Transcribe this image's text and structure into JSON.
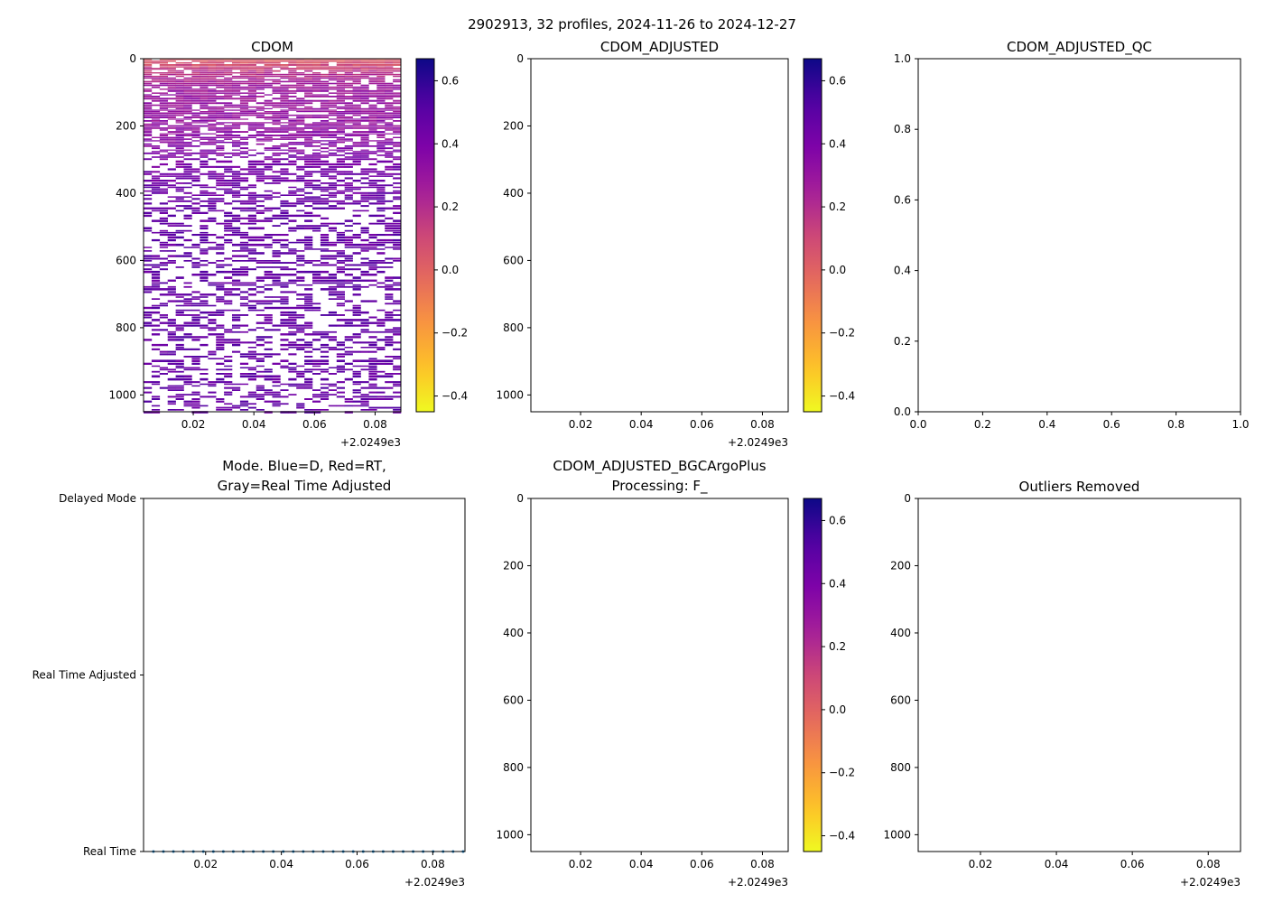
{
  "suptitle": "2902913, 32 profiles, 2024-11-26 to 2024-12-27",
  "colors": {
    "dots": "#1f77b4",
    "frame": "#000000"
  },
  "chart_data": [
    {
      "id": "cdom",
      "type": "heatmap",
      "title": "CDOM",
      "xlim": [
        0.0036,
        0.0885
      ],
      "xticks": [
        "0.02",
        "0.04",
        "0.06",
        "0.08"
      ],
      "xtick_values": [
        0.02,
        0.04,
        0.06,
        0.08
      ],
      "x_offset_label": "+2.0249e3",
      "ylim": [
        1050,
        0
      ],
      "yticks": [
        "0",
        "200",
        "400",
        "600",
        "800",
        "1000"
      ],
      "ytick_values": [
        0,
        200,
        400,
        600,
        800,
        1000
      ],
      "n_profiles": 32,
      "depth_profile": {
        "depth": [
          0,
          30,
          80,
          200,
          320,
          450,
          700,
          1050
        ],
        "mean_value": [
          0.02,
          0.15,
          0.28,
          0.32,
          0.42,
          0.47,
          0.48,
          0.47
        ],
        "missing_fraction": [
          0.1,
          0.15,
          0.2,
          0.25,
          0.45,
          0.5,
          0.55,
          0.6
        ]
      },
      "colorbar": {
        "cmap": "plasma_r",
        "range": [
          -0.45,
          0.67
        ],
        "ticks": [
          "−0.4",
          "−0.2",
          "0.0",
          "0.2",
          "0.4",
          "0.6"
        ],
        "tick_values": [
          -0.4,
          -0.2,
          0,
          0.2,
          0.4,
          0.6
        ]
      }
    },
    {
      "id": "cdom_adj",
      "type": "heatmap",
      "title": "CDOM_ADJUSTED",
      "xlim": [
        0.0036,
        0.0885
      ],
      "xticks": [
        "0.02",
        "0.04",
        "0.06",
        "0.08"
      ],
      "xtick_values": [
        0.02,
        0.04,
        0.06,
        0.08
      ],
      "x_offset_label": "+2.0249e3",
      "ylim": [
        1050,
        0
      ],
      "yticks": [
        "0",
        "200",
        "400",
        "600",
        "800",
        "1000"
      ],
      "ytick_values": [
        0,
        200,
        400,
        600,
        800,
        1000
      ],
      "colorbar": {
        "cmap": "plasma_r",
        "range": [
          -0.45,
          0.67
        ],
        "ticks": [
          "−0.4",
          "−0.2",
          "0.0",
          "0.2",
          "0.4",
          "0.6"
        ],
        "tick_values": [
          -0.4,
          -0.2,
          0,
          0.2,
          0.4,
          0.6
        ]
      }
    },
    {
      "id": "cdom_adj_qc",
      "type": "scatter",
      "title": "CDOM_ADJUSTED_QC",
      "xlim": [
        0,
        1
      ],
      "xticks": [
        "0.0",
        "0.2",
        "0.4",
        "0.6",
        "0.8",
        "1.0"
      ],
      "xtick_values": [
        0,
        0.2,
        0.4,
        0.6,
        0.8,
        1.0
      ],
      "ylim": [
        0,
        1
      ],
      "yticks": [
        "0.0",
        "0.2",
        "0.4",
        "0.6",
        "0.8",
        "1.0"
      ],
      "ytick_values": [
        0,
        0.2,
        0.4,
        0.6,
        0.8,
        1.0
      ]
    },
    {
      "id": "mode",
      "type": "scatter",
      "title": "Mode. Blue=D, Red=RT,",
      "title2": "Gray=Real Time Adjusted",
      "xlim": [
        0.0036,
        0.0885
      ],
      "xticks": [
        "0.02",
        "0.04",
        "0.06",
        "0.08"
      ],
      "xtick_values": [
        0.02,
        0.04,
        0.06,
        0.08
      ],
      "x_offset_label": "+2.0249e3",
      "ylim": [
        0,
        2
      ],
      "yticks": [
        "Real Time",
        "Real Time Adjusted",
        "Delayed Mode"
      ],
      "ytick_values": [
        0,
        1,
        2
      ],
      "points": {
        "x_start": 0.0062,
        "x_end": 0.088,
        "count": 32,
        "y": 0
      }
    },
    {
      "id": "bgc",
      "type": "heatmap",
      "title": "CDOM_ADJUSTED_BGCArgoPlus",
      "title2": "Processing: F_",
      "xlim": [
        0.0036,
        0.0885
      ],
      "xticks": [
        "0.02",
        "0.04",
        "0.06",
        "0.08"
      ],
      "xtick_values": [
        0.02,
        0.04,
        0.06,
        0.08
      ],
      "x_offset_label": "+2.0249e3",
      "ylim": [
        1050,
        0
      ],
      "yticks": [
        "0",
        "200",
        "400",
        "600",
        "800",
        "1000"
      ],
      "ytick_values": [
        0,
        200,
        400,
        600,
        800,
        1000
      ],
      "colorbar": {
        "cmap": "plasma_r",
        "range": [
          -0.45,
          0.67
        ],
        "ticks": [
          "−0.4",
          "−0.2",
          "0.0",
          "0.2",
          "0.4",
          "0.6"
        ],
        "tick_values": [
          -0.4,
          -0.2,
          0,
          0.2,
          0.4,
          0.6
        ]
      }
    },
    {
      "id": "outliers",
      "type": "heatmap",
      "title": "Outliers Removed",
      "xlim": [
        0.0036,
        0.0885
      ],
      "xticks": [
        "0.02",
        "0.04",
        "0.06",
        "0.08"
      ],
      "xtick_values": [
        0.02,
        0.04,
        0.06,
        0.08
      ],
      "x_offset_label": "+2.0249e3",
      "ylim": [
        1050,
        0
      ],
      "yticks": [
        "0",
        "200",
        "400",
        "600",
        "800",
        "1000"
      ],
      "ytick_values": [
        0,
        200,
        400,
        600,
        800,
        1000
      ]
    }
  ]
}
